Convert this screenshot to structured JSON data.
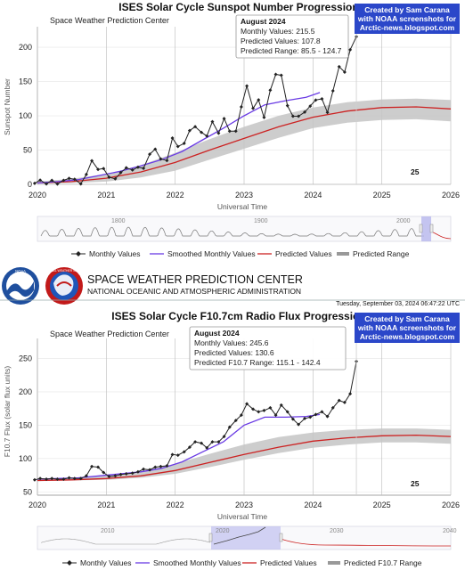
{
  "header": {
    "title": "SPACE WEATHER PREDICTION CENTER",
    "subtitle": "NATIONAL OCEANIC AND ATMOSPHERIC ADMINISTRATION",
    "timestamp": "Tuesday, September 03, 2024 06:47:22 UTC",
    "noaa_logo": "NOAA",
    "nws_logo": "NATIONAL WEATHER SERVICE"
  },
  "credit": {
    "line1": "Created by Sam Carana",
    "line2": "with NOAA screenshots for",
    "line3": "Arctic-news.blogspot.com"
  },
  "colors": {
    "monthly": "#222222",
    "smoothed": "#6a3be4",
    "predicted": "#cc2222",
    "range": "#c4c4c4",
    "credit_bg": "#2b47c9"
  },
  "chart_data": [
    {
      "type": "line",
      "title": "ISES Solar Cycle Sunspot Number Progression",
      "subtitle": "Space Weather Prediction Center",
      "xlabel": "Universal Time",
      "ylabel": "Sunspot Number",
      "xlim": [
        2020,
        2026
      ],
      "ylim": [
        0,
        230
      ],
      "x_ticks": [
        "2020",
        "2021",
        "2022",
        "2023",
        "2024",
        "2025",
        "2026"
      ],
      "y_ticks": [
        "0",
        "50",
        "100",
        "150",
        "200"
      ],
      "cycle_label": "25",
      "tooltip": {
        "title": "August 2024",
        "line1": "Monthly Values: 215.5",
        "line2": "Predicted Values: 107.8",
        "line3": "Predicted Range: 85.5 - 124.7"
      },
      "legend": [
        "Monthly Values",
        "Smoothed Monthly Values",
        "Predicted Values",
        "Predicted Range"
      ],
      "navigator_labels": [
        "1800",
        "1900",
        "2000"
      ],
      "series": [
        {
          "name": "Monthly Values",
          "x": [
            2019.96,
            2020.04,
            2020.13,
            2020.21,
            2020.29,
            2020.38,
            2020.46,
            2020.54,
            2020.63,
            2020.71,
            2020.79,
            2020.88,
            2020.96,
            2021.04,
            2021.13,
            2021.21,
            2021.29,
            2021.38,
            2021.46,
            2021.54,
            2021.63,
            2021.71,
            2021.79,
            2021.88,
            2021.96,
            2022.04,
            2022.13,
            2022.21,
            2022.29,
            2022.38,
            2022.46,
            2022.54,
            2022.63,
            2022.71,
            2022.79,
            2022.88,
            2022.96,
            2023.04,
            2023.13,
            2023.21,
            2023.29,
            2023.38,
            2023.46,
            2023.54,
            2023.63,
            2023.71,
            2023.79,
            2023.88,
            2023.96,
            2024.04,
            2024.13,
            2024.21,
            2024.29,
            2024.38,
            2024.46,
            2024.54,
            2024.63
          ],
          "y": [
            1.5,
            6.2,
            0.6,
            5.8,
            0.5,
            5.8,
            8.7,
            7.5,
            0.6,
            14.4,
            34.5,
            21.8,
            23.1,
            10.4,
            8.2,
            17.2,
            24.2,
            21,
            25,
            23.4,
            44,
            51.3,
            37,
            34.8,
            67.5,
            55.3,
            59.7,
            78.5,
            84.1,
            75.9,
            70.5,
            91.4,
            74.6,
            96,
            77.6,
            77.6,
            113.1,
            143.6,
            110.9,
            123.3,
            97.6,
            137.4,
            160.5,
            159.1,
            114.8,
            99.4,
            99.4,
            105.4,
            114.2,
            123,
            124.7,
            104.9,
            136.5,
            171.7,
            163.8,
            196.3,
            215.5
          ]
        },
        {
          "name": "Smoothed Monthly Values",
          "x": [
            2020.0,
            2020.3,
            2020.6,
            2020.9,
            2021.2,
            2021.5,
            2021.8,
            2022.1,
            2022.4,
            2022.7,
            2023.0,
            2023.3,
            2023.6,
            2023.9,
            2024.1
          ],
          "y": [
            2,
            4,
            7,
            13,
            19,
            27,
            36,
            48,
            65,
            82,
            100,
            116,
            122,
            127,
            134
          ]
        },
        {
          "name": "Predicted Values",
          "x": [
            2020,
            2020.5,
            2021,
            2021.5,
            2022,
            2022.5,
            2023,
            2023.5,
            2024,
            2024.5,
            2025,
            2025.5,
            2026
          ],
          "y": [
            2,
            4,
            9,
            18,
            32,
            50,
            67,
            84,
            98,
            107,
            112,
            113,
            110
          ]
        },
        {
          "name": "Predicted Range",
          "x": [
            2020,
            2020.5,
            2021,
            2021.5,
            2022,
            2022.5,
            2023,
            2023.5,
            2024,
            2024.5,
            2025,
            2025.5,
            2026
          ],
          "y_low": [
            1,
            2,
            4,
            10,
            20,
            36,
            52,
            68,
            82,
            90,
            94,
            95,
            92
          ],
          "y_high": [
            4,
            8,
            15,
            28,
            46,
            66,
            84,
            100,
            112,
            120,
            124,
            125,
            123
          ]
        }
      ]
    },
    {
      "type": "line",
      "title": "ISES Solar Cycle F10.7cm Radio Flux Progression",
      "subtitle": "Space Weather Prediction Center",
      "xlabel": "Universal Time",
      "ylabel": "F10.7 Flux (solar flux units)",
      "xlim": [
        2020,
        2026
      ],
      "ylim": [
        45,
        280
      ],
      "x_ticks": [
        "2020",
        "2021",
        "2022",
        "2023",
        "2024",
        "2025",
        "2026"
      ],
      "y_ticks": [
        "50",
        "100",
        "150",
        "200",
        "250"
      ],
      "cycle_label": "25",
      "tooltip": {
        "title": "August 2024",
        "line1": "Monthly Values: 245.6",
        "line2": "Predicted Values: 130.6",
        "line3": "Predicted F10.7 Range: 115.1 - 142.4"
      },
      "legend": [
        "Monthly Values",
        "Smoothed Monthly Values",
        "Predicted Values",
        "Predicted F10.7 Range"
      ],
      "navigator_labels": [
        "2010",
        "2020",
        "2030",
        "2040"
      ],
      "series": [
        {
          "name": "Monthly Values",
          "x": [
            2019.96,
            2020.04,
            2020.13,
            2020.21,
            2020.29,
            2020.38,
            2020.46,
            2020.54,
            2020.63,
            2020.71,
            2020.79,
            2020.88,
            2020.96,
            2021.04,
            2021.13,
            2021.21,
            2021.29,
            2021.38,
            2021.46,
            2021.54,
            2021.63,
            2021.71,
            2021.79,
            2021.88,
            2021.96,
            2022.04,
            2022.13,
            2022.21,
            2022.29,
            2022.38,
            2022.46,
            2022.54,
            2022.63,
            2022.71,
            2022.79,
            2022.88,
            2022.96,
            2023.04,
            2023.13,
            2023.21,
            2023.29,
            2023.38,
            2023.46,
            2023.54,
            2023.63,
            2023.71,
            2023.79,
            2023.88,
            2023.96,
            2024.04,
            2024.13,
            2024.21,
            2024.29,
            2024.38,
            2024.46,
            2024.54,
            2024.63
          ],
          "y": [
            68,
            70,
            69,
            70,
            69,
            69,
            71,
            70,
            70,
            74,
            88,
            87,
            79,
            73,
            74,
            76,
            77,
            78,
            80,
            84,
            83,
            87,
            88,
            89,
            106,
            105,
            110,
            117,
            125,
            123,
            116,
            125,
            125,
            133,
            147,
            157,
            165,
            182,
            174,
            170,
            172,
            176,
            165,
            180,
            170,
            159,
            151,
            160,
            162,
            166,
            170,
            163,
            176,
            187,
            184,
            197,
            245.6
          ]
        },
        {
          "name": "Smoothed Monthly Values",
          "x": [
            2020.0,
            2020.3,
            2020.6,
            2020.9,
            2021.2,
            2021.5,
            2021.8,
            2022.1,
            2022.4,
            2022.7,
            2023.0,
            2023.3,
            2023.6,
            2023.9,
            2024.1
          ],
          "y": [
            69,
            70,
            71,
            74,
            77,
            80,
            85,
            95,
            110,
            125,
            150,
            162,
            162,
            163,
            166
          ]
        },
        {
          "name": "Predicted Values",
          "x": [
            2020,
            2020.5,
            2021,
            2021.5,
            2022,
            2022.5,
            2023,
            2023.5,
            2024,
            2024.5,
            2025,
            2025.5,
            2026
          ],
          "y": [
            67,
            68,
            70,
            74,
            82,
            94,
            106,
            117,
            126,
            131,
            134,
            135,
            133
          ]
        },
        {
          "name": "Predicted F10.7 Range",
          "x": [
            2020,
            2020.5,
            2021,
            2021.5,
            2022,
            2022.5,
            2023,
            2023.5,
            2024,
            2024.5,
            2025,
            2025.5,
            2026
          ],
          "y_low": [
            66,
            67,
            68,
            71,
            77,
            87,
            98,
            108,
            116,
            121,
            124,
            124,
            122
          ],
          "y_high": [
            69,
            71,
            75,
            81,
            92,
            107,
            121,
            132,
            139,
            143,
            145,
            145,
            143
          ]
        }
      ]
    }
  ]
}
